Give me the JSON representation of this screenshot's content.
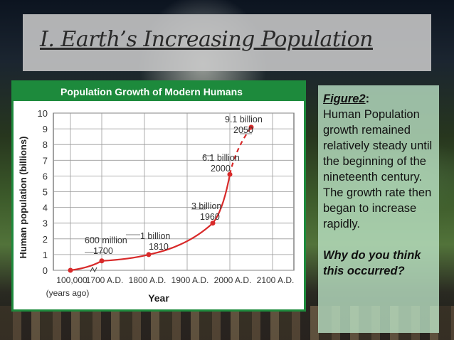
{
  "slide": {
    "title": "I.  Earth’s Increasing Population"
  },
  "side_panel": {
    "figure_label": "Figure2",
    "figure_colon": ":",
    "text": "Human Population growth remained relatively steady until the beginning of the nineteenth century.  The growth rate then began to increase rapidly.",
    "question": "Why do you think this occurred?"
  },
  "chart_data": {
    "type": "line",
    "title": "Population Growth of Modern Humans",
    "ylabel": "Human population (billions)",
    "xlabel": "Year",
    "x_ticks": [
      "100,000",
      "1700 A.D.",
      "1800 A.D.",
      "1900 A.D.",
      "2000 A.D.",
      "2100 A.D."
    ],
    "x_sublabel": "(years ago)",
    "y_ticks": [
      0,
      1,
      2,
      3,
      4,
      5,
      6,
      7,
      8,
      9,
      10
    ],
    "ylim": [
      0,
      10
    ],
    "grid": true,
    "colors": {
      "title_bar": "#1d8a3c",
      "line": "#d82a2a",
      "point": "#d82a2a",
      "grid": "#999999",
      "axis_text": "#333333"
    },
    "series": [
      {
        "points": [
          {
            "x": "100,000 years ago",
            "y": 0.0
          },
          {
            "x": 1700,
            "y": 0.6
          },
          {
            "x": 1810,
            "y": 1.0
          },
          {
            "x": 1960,
            "y": 3.0
          },
          {
            "x": 2000,
            "y": 6.1
          }
        ]
      },
      {
        "style": "dashed",
        "points": [
          {
            "x": 2000,
            "y": 6.1
          },
          {
            "x": 2050,
            "y": 9.1
          }
        ]
      }
    ],
    "annotations": [
      {
        "value": "600 million",
        "year": "1700"
      },
      {
        "value": "1 billion",
        "year": "1810"
      },
      {
        "value": "3 billion",
        "year": "1960"
      },
      {
        "value": "6.1 billion",
        "year": "2000"
      },
      {
        "value": "9.1 billion",
        "year": "2050"
      }
    ]
  }
}
